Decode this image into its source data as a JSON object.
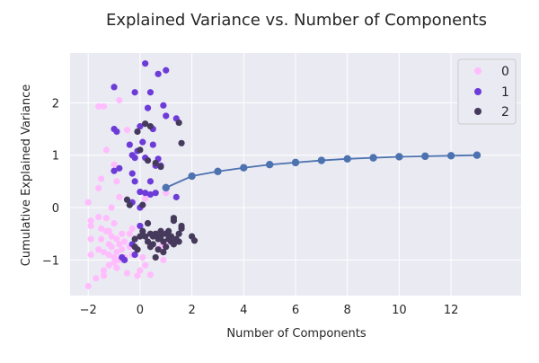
{
  "chart_data": {
    "type": "scatter",
    "title": "Explained Variance vs. Number of Components",
    "xlabel": "Number of Components",
    "ylabel": "Cumulative Explained Variance",
    "xlim": [
      -2.7,
      14.7
    ],
    "ylim": [
      -1.68,
      2.95
    ],
    "xticks": [
      -2,
      0,
      2,
      4,
      6,
      8,
      10,
      12
    ],
    "yticks": [
      -1,
      0,
      1,
      2
    ],
    "grid": true,
    "legend_position": "top-right",
    "colors": {
      "background": "#eaeaf2",
      "grid": "#ffffff",
      "line": "#4c72b0",
      "class_0": "#ffbdfe",
      "class_1": "#6d3bd8",
      "class_2": "#463a5c"
    },
    "legend": [
      {
        "label": "0",
        "color": "#ffbdfe"
      },
      {
        "label": "1",
        "color": "#6d3bd8"
      },
      {
        "label": "2",
        "color": "#463a5c"
      }
    ],
    "line_series": {
      "x": [
        1,
        2,
        3,
        4,
        5,
        6,
        7,
        8,
        9,
        10,
        11,
        12,
        13
      ],
      "y": [
        0.38,
        0.6,
        0.69,
        0.76,
        0.82,
        0.86,
        0.9,
        0.93,
        0.95,
        0.97,
        0.98,
        0.99,
        1.0
      ]
    },
    "scatter_series": [
      {
        "name": "0",
        "color": "#ffbdfe",
        "points": [
          [
            -2.0,
            0.1
          ],
          [
            -1.9,
            -0.25
          ],
          [
            -1.9,
            -0.35
          ],
          [
            -1.9,
            -0.6
          ],
          [
            -1.9,
            -0.9
          ],
          [
            -2.0,
            -1.5
          ],
          [
            -1.6,
            1.93
          ],
          [
            -1.4,
            1.93
          ],
          [
            -1.3,
            1.1
          ],
          [
            -1.6,
            0.37
          ],
          [
            -1.5,
            0.55
          ],
          [
            -1.6,
            -0.18
          ],
          [
            -1.5,
            -0.4
          ],
          [
            -1.5,
            -0.6
          ],
          [
            -1.6,
            -0.8
          ],
          [
            -1.7,
            -1.35
          ],
          [
            -1.4,
            -1.3
          ],
          [
            -1.4,
            -1.2
          ],
          [
            -1.3,
            -0.2
          ],
          [
            -1.2,
            -0.45
          ],
          [
            -1.2,
            -0.7
          ],
          [
            -1.2,
            -0.9
          ],
          [
            -1.2,
            -1.1
          ],
          [
            -1.1,
            -0.55
          ],
          [
            -1.1,
            -0.75
          ],
          [
            -1.0,
            -0.3
          ],
          [
            -1.0,
            0.82
          ],
          [
            -1.0,
            -0.95
          ],
          [
            -1.0,
            -1.05
          ],
          [
            -0.9,
            0.5
          ],
          [
            -0.9,
            -0.6
          ],
          [
            -0.9,
            -0.85
          ],
          [
            -0.9,
            -1.15
          ],
          [
            -0.8,
            2.05
          ],
          [
            -0.8,
            0.2
          ],
          [
            -0.8,
            -0.7
          ],
          [
            -0.8,
            -1.0
          ],
          [
            -0.7,
            -0.5
          ],
          [
            -0.7,
            -0.8
          ],
          [
            -0.6,
            -0.65
          ],
          [
            -0.6,
            -0.95
          ],
          [
            -0.5,
            1.48
          ],
          [
            -0.5,
            -1.25
          ],
          [
            -0.4,
            -0.5
          ],
          [
            -0.4,
            -0.75
          ],
          [
            -0.3,
            -0.4
          ],
          [
            -0.3,
            -0.9
          ],
          [
            -0.1,
            -1.3
          ],
          [
            0.0,
            -1.2
          ],
          [
            0.1,
            -0.95
          ],
          [
            0.2,
            -1.1
          ],
          [
            0.4,
            -1.28
          ],
          [
            0.8,
            -0.75
          ],
          [
            0.9,
            -1.0
          ],
          [
            1.0,
            0.28
          ],
          [
            1.0,
            -0.7
          ],
          [
            0.2,
            0.17
          ],
          [
            -1.4,
            -0.85
          ],
          [
            -1.3,
            -0.45
          ],
          [
            -1.1,
            0.0
          ]
        ]
      },
      {
        "name": "1",
        "color": "#6d3bd8",
        "points": [
          [
            -1.0,
            2.3
          ],
          [
            -0.2,
            2.2
          ],
          [
            0.2,
            2.75
          ],
          [
            0.4,
            2.2
          ],
          [
            0.7,
            2.55
          ],
          [
            1.0,
            2.62
          ],
          [
            0.3,
            1.9
          ],
          [
            0.9,
            1.95
          ],
          [
            1.4,
            1.7
          ],
          [
            -1.0,
            1.5
          ],
          [
            -0.9,
            1.45
          ],
          [
            0.0,
            1.55
          ],
          [
            0.1,
            1.25
          ],
          [
            0.5,
            1.5
          ],
          [
            -0.4,
            1.2
          ],
          [
            -0.3,
            1.0
          ],
          [
            -0.2,
            0.95
          ],
          [
            0.5,
            1.2
          ],
          [
            0.7,
            0.93
          ],
          [
            -1.0,
            0.7
          ],
          [
            -0.8,
            0.75
          ],
          [
            -0.3,
            0.65
          ],
          [
            -0.2,
            0.5
          ],
          [
            -0.3,
            0.1
          ],
          [
            0.0,
            0.3
          ],
          [
            0.2,
            0.28
          ],
          [
            0.4,
            0.25
          ],
          [
            0.6,
            0.28
          ],
          [
            1.4,
            0.2
          ],
          [
            0.0,
            0.0
          ],
          [
            0.0,
            -0.35
          ],
          [
            -0.3,
            -0.7
          ],
          [
            -0.7,
            -0.95
          ],
          [
            -0.6,
            -1.0
          ],
          [
            -0.2,
            -0.9
          ],
          [
            0.6,
            0.8
          ],
          [
            0.8,
            0.8
          ],
          [
            1.0,
            1.75
          ],
          [
            0.2,
            0.95
          ],
          [
            -0.1,
            1.08
          ],
          [
            0.4,
            0.5
          ]
        ]
      },
      {
        "name": "2",
        "color": "#463a5c",
        "points": [
          [
            0.2,
            1.6
          ],
          [
            0.4,
            1.55
          ],
          [
            1.5,
            1.62
          ],
          [
            1.6,
            1.23
          ],
          [
            -0.1,
            1.45
          ],
          [
            0.0,
            1.1
          ],
          [
            0.3,
            0.9
          ],
          [
            0.8,
            0.78
          ],
          [
            0.6,
            0.85
          ],
          [
            -0.5,
            0.15
          ],
          [
            -0.4,
            0.05
          ],
          [
            0.1,
            0.05
          ],
          [
            1.3,
            -0.2
          ],
          [
            1.3,
            -0.25
          ],
          [
            1.6,
            -0.35
          ],
          [
            1.6,
            -0.4
          ],
          [
            2.0,
            -0.55
          ],
          [
            2.1,
            -0.63
          ],
          [
            0.3,
            -0.3
          ],
          [
            0.1,
            -0.45
          ],
          [
            0.2,
            -0.55
          ],
          [
            0.4,
            -0.5
          ],
          [
            0.5,
            -0.55
          ],
          [
            0.6,
            -0.5
          ],
          [
            0.7,
            -0.6
          ],
          [
            0.8,
            -0.55
          ],
          [
            0.9,
            -0.65
          ],
          [
            1.0,
            -0.5
          ],
          [
            1.1,
            -0.6
          ],
          [
            1.2,
            -0.55
          ],
          [
            1.3,
            -0.7
          ],
          [
            1.4,
            -0.6
          ],
          [
            1.5,
            -0.5
          ],
          [
            0.5,
            -0.7
          ],
          [
            0.7,
            -0.8
          ],
          [
            0.9,
            -0.85
          ],
          [
            1.0,
            -0.75
          ],
          [
            0.3,
            -0.65
          ],
          [
            0.4,
            -0.75
          ],
          [
            -0.2,
            -0.6
          ],
          [
            -0.2,
            -0.75
          ],
          [
            0.0,
            -0.55
          ],
          [
            -0.1,
            -0.8
          ],
          [
            1.1,
            -0.45
          ],
          [
            0.8,
            -0.45
          ],
          [
            0.6,
            -0.95
          ],
          [
            1.2,
            -0.65
          ],
          [
            1.5,
            -0.65
          ]
        ]
      }
    ]
  }
}
